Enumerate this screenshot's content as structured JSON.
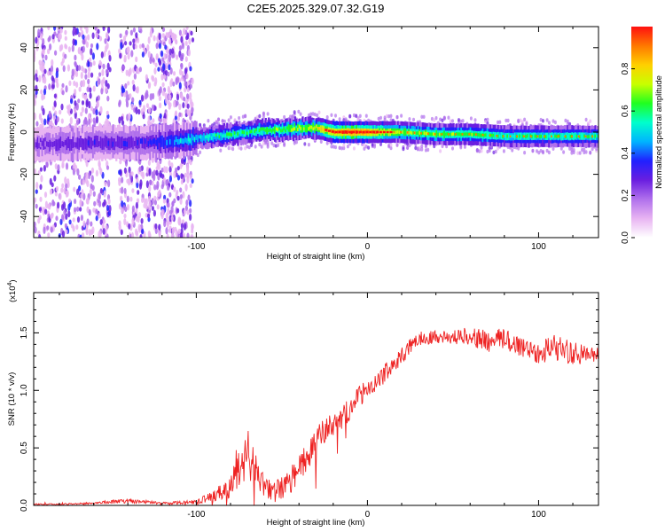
{
  "title": "C2E5.2025.329.07.32.G19",
  "chart_data": [
    {
      "type": "heatmap",
      "description": "spectrogram",
      "xlabel": "Height of straight line (km)",
      "ylabel": "Frequency (Hz)",
      "xlim": [
        -195,
        135
      ],
      "ylim": [
        -50,
        50
      ],
      "xticks": [
        -100,
        0,
        100
      ],
      "yticks": [
        -40,
        -20,
        0,
        20,
        40
      ],
      "colorbar": {
        "label": "Normalized spectral amplitude",
        "range": [
          0,
          1
        ],
        "ticks": [
          0.0,
          0.2,
          0.4,
          0.6,
          0.8
        ],
        "tick_labels": [
          "0.0",
          "0.2",
          "0.4",
          "0.6",
          "0.8"
        ],
        "colors": [
          "#ffffff",
          "#e8b4f2",
          "#b070ec",
          "#6a1fe0",
          "#2020ff",
          "#00b4ff",
          "#00ffcc",
          "#20ff20",
          "#c8ff00",
          "#ffd000",
          "#ff7800",
          "#ff1010"
        ]
      },
      "ridge": {
        "x": [
          -195,
          -160,
          -130,
          -110,
          -100,
          -90,
          -80,
          -70,
          -60,
          -50,
          -40,
          -30,
          -20,
          -10,
          0,
          20,
          40,
          60,
          80,
          100,
          120,
          135
        ],
        "frequency": [
          -6,
          -5,
          -5,
          -4,
          -3,
          -2,
          -1,
          0,
          1,
          1,
          2,
          2,
          0,
          0,
          0,
          0,
          -1,
          -1,
          -2,
          -2,
          -2,
          -2
        ],
        "amplitude": [
          0.25,
          0.3,
          0.3,
          0.45,
          0.5,
          0.55,
          0.6,
          0.6,
          0.65,
          0.65,
          0.7,
          0.75,
          0.9,
          0.95,
          0.9,
          0.7,
          0.65,
          0.65,
          0.6,
          0.6,
          0.6,
          0.6
        ]
      }
    },
    {
      "type": "line",
      "xlabel": "Height of straight line (km)",
      "ylabel": "SNR (10 * v/v)",
      "yscale_label": "(x10",
      "yscale_exp": "4",
      "xlim": [
        -195,
        135
      ],
      "ylim": [
        0,
        1.85
      ],
      "xticks": [
        -100,
        0,
        100
      ],
      "yticks": [
        0.0,
        0.5,
        1.0,
        1.5
      ],
      "ytick_labels": [
        "0.0",
        "0.5",
        "1.0",
        "1.5"
      ],
      "color": "#ee2222",
      "series": [
        {
          "name": "SNR",
          "x": [
            -195,
            -180,
            -160,
            -140,
            -120,
            -100,
            -90,
            -80,
            -75,
            -70,
            -65,
            -60,
            -55,
            -50,
            -45,
            -40,
            -35,
            -30,
            -25,
            -20,
            -15,
            -10,
            -5,
            0,
            5,
            10,
            15,
            20,
            25,
            30,
            40,
            50,
            60,
            70,
            80,
            90,
            100,
            110,
            120,
            130,
            135
          ],
          "mean": [
            0.01,
            0.01,
            0.02,
            0.04,
            0.02,
            0.03,
            0.08,
            0.15,
            0.35,
            0.45,
            0.3,
            0.15,
            0.12,
            0.15,
            0.2,
            0.35,
            0.4,
            0.55,
            0.65,
            0.7,
            0.75,
            0.85,
            0.95,
            1.0,
            1.05,
            1.15,
            1.22,
            1.3,
            1.38,
            1.45,
            1.47,
            1.46,
            1.48,
            1.42,
            1.45,
            1.38,
            1.33,
            1.38,
            1.32,
            1.3,
            1.32
          ],
          "noise": [
            0.005,
            0.005,
            0.01,
            0.02,
            0.01,
            0.02,
            0.05,
            0.1,
            0.18,
            0.22,
            0.15,
            0.08,
            0.1,
            0.1,
            0.12,
            0.12,
            0.12,
            0.12,
            0.12,
            0.1,
            0.1,
            0.1,
            0.1,
            0.08,
            0.08,
            0.08,
            0.07,
            0.07,
            0.07,
            0.06,
            0.06,
            0.06,
            0.08,
            0.1,
            0.1,
            0.1,
            0.1,
            0.12,
            0.1,
            0.08,
            0.08
          ]
        }
      ]
    }
  ]
}
